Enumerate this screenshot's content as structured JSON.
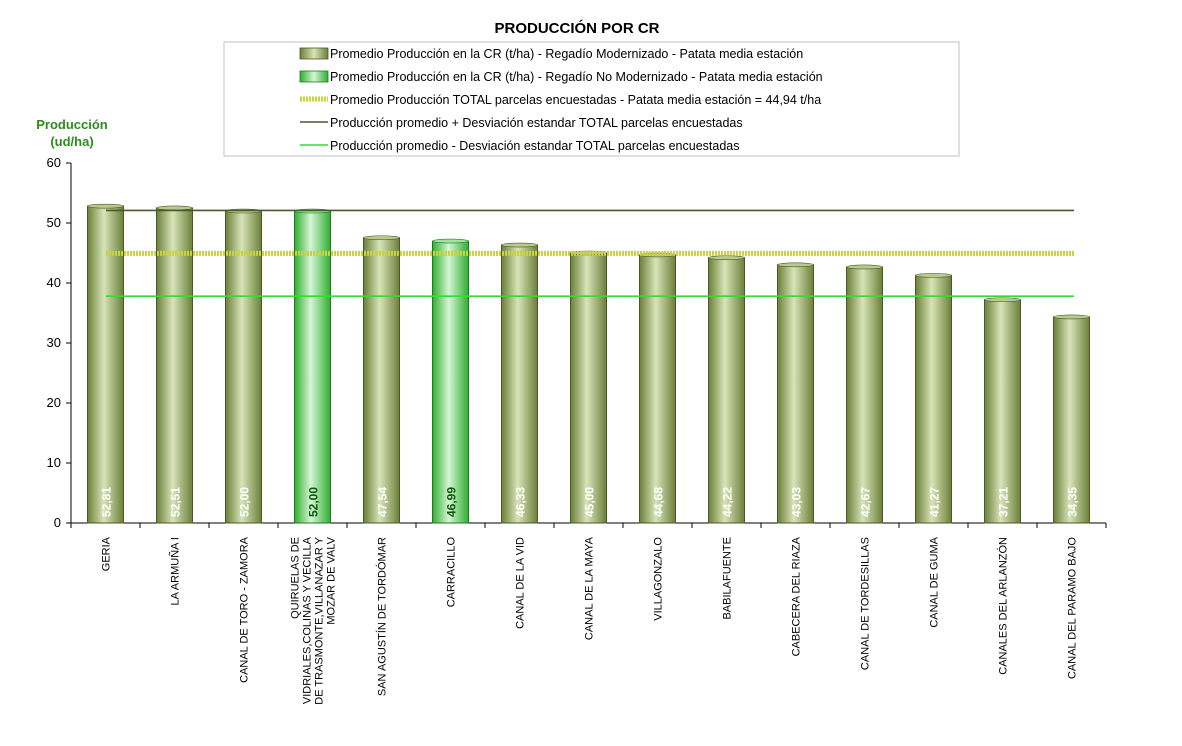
{
  "chart_data": {
    "type": "bar",
    "title": "PRODUCCIÓN POR CR",
    "ylabel_line1": "Producción",
    "ylabel_line2": "(ud/ha)",
    "ylim": [
      0,
      60
    ],
    "yticks": [
      0,
      10,
      20,
      30,
      40,
      50,
      60
    ],
    "categories": [
      [
        "GERIA"
      ],
      [
        "LA ARMUÑA I"
      ],
      [
        "CANAL DE TORO - ZAMORA"
      ],
      [
        "QUIRUELAS DE",
        "VIDRIALES,COLINAS Y VECILLA",
        "DE TRASMONTE,VILLANAZAR Y",
        "MOZAR DE VALV"
      ],
      [
        "SAN AGUSTÍN DE TORDÓMAR"
      ],
      [
        "CARRACILLO"
      ],
      [
        "CANAL DE LA VID"
      ],
      [
        "CANAL DE LA MAYA"
      ],
      [
        "VILLAGONZALO"
      ],
      [
        "BABILAFUENTE"
      ],
      [
        "CABECERA DEL RIAZA"
      ],
      [
        "CANAL DE TORDESILLAS"
      ],
      [
        "CANAL DE GUMA"
      ],
      [
        "CANALES DEL ARLANZÓN"
      ],
      [
        "CANAL DEL PARAMO BAJO"
      ]
    ],
    "series": [
      {
        "name": "Promedio Producción en la CR (t/ha) - Regadío Modernizado  - Patata media estación",
        "color": "#8ea35a",
        "values": [
          52.81,
          52.51,
          52.0,
          null,
          47.54,
          null,
          46.33,
          45.0,
          44.68,
          44.22,
          43.03,
          42.67,
          41.27,
          37.21,
          34.35
        ],
        "labels": [
          "52,81",
          "52,51",
          "52,00",
          "",
          "47,54",
          "",
          "46,33",
          "45,00",
          "44,68",
          "44,22",
          "43,03",
          "42,67",
          "41,27",
          "37,21",
          "34,35"
        ]
      },
      {
        "name": "Promedio Producción en la CR (t/ha) - Regadío No Modernizado  - Patata media estación",
        "color": "#3cbf3c",
        "values": [
          null,
          null,
          null,
          52.0,
          null,
          46.99,
          null,
          null,
          null,
          null,
          null,
          null,
          null,
          null,
          null
        ],
        "labels": [
          "",
          "",
          "",
          "52,00",
          "",
          "46,99",
          "",
          "",
          "",
          "",
          "",
          "",
          "",
          "",
          ""
        ]
      }
    ],
    "reference_lines": [
      {
        "name": "Promedio Producción TOTAL parcelas encuestadas - Patata media estación = 44,94 t/ha",
        "value": 44.94,
        "color": "#c8d438",
        "style": "dotted-thick"
      },
      {
        "name": "Producción promedio + Desviación estandar TOTAL parcelas encuestadas",
        "value": 52.1,
        "color": "#4a5a2a",
        "style": "solid"
      },
      {
        "name": "Producción promedio - Desviación estandar TOTAL parcelas encuestadas",
        "value": 37.8,
        "color": "#33dd33",
        "style": "solid"
      }
    ],
    "grid": false,
    "legend_position": "top"
  }
}
